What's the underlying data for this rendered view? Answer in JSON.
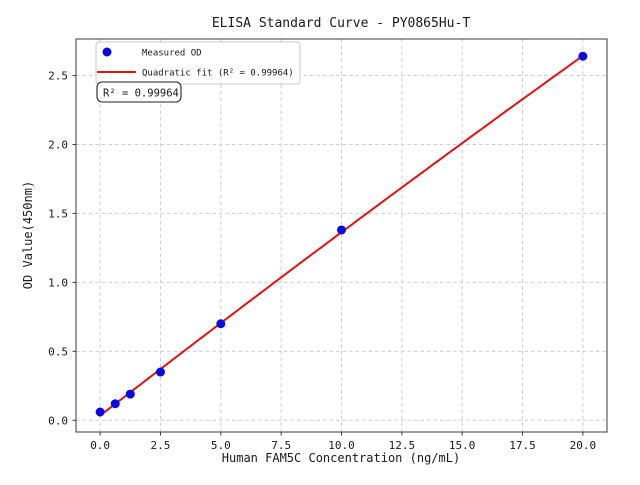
{
  "chart_data": {
    "type": "scatter",
    "title": "ELISA Standard Curve - PY0865Hu-T",
    "xlabel": "Human FAM5C Concentration (ng/mL)",
    "ylabel": "OD Value(450nm)",
    "xlim": [
      -1,
      21
    ],
    "ylim": [
      -0.085,
      2.765
    ],
    "xticks": [
      0,
      2.5,
      5,
      7.5,
      10,
      12.5,
      15,
      17.5,
      20
    ],
    "xtick_labels": [
      "0.0",
      "2.5",
      "5.0",
      "7.5",
      "10.0",
      "12.5",
      "15.0",
      "17.5",
      "20.0"
    ],
    "yticks": [
      0,
      0.5,
      1,
      1.5,
      2,
      2.5
    ],
    "ytick_labels": [
      "0.0",
      "0.5",
      "1.0",
      "1.5",
      "2.0",
      "2.5"
    ],
    "grid": true,
    "legend_position": "upper left",
    "series": [
      {
        "name": "Measured OD",
        "type": "scatter",
        "color": "#0a0ae0",
        "x": [
          0,
          0.625,
          1.25,
          2.5,
          5,
          10,
          20
        ],
        "y": [
          0.06,
          0.12,
          0.19,
          0.35,
          0.7,
          1.38,
          2.64
        ]
      },
      {
        "name": "Quadratic fit (R² = 0.99964)",
        "type": "quadratic-fit",
        "color": "#e01212",
        "fit_range": [
          0,
          20
        ],
        "r_squared": 0.99964
      }
    ],
    "annotation": "R² = 0.99964"
  },
  "colors": {
    "grid": "#cdcdcd",
    "spine": "#3a3a3a",
    "text": "#1a1a1a",
    "legend_border": "#c8c8c8",
    "annotation_border": "#222222",
    "background": "#ffffff"
  }
}
